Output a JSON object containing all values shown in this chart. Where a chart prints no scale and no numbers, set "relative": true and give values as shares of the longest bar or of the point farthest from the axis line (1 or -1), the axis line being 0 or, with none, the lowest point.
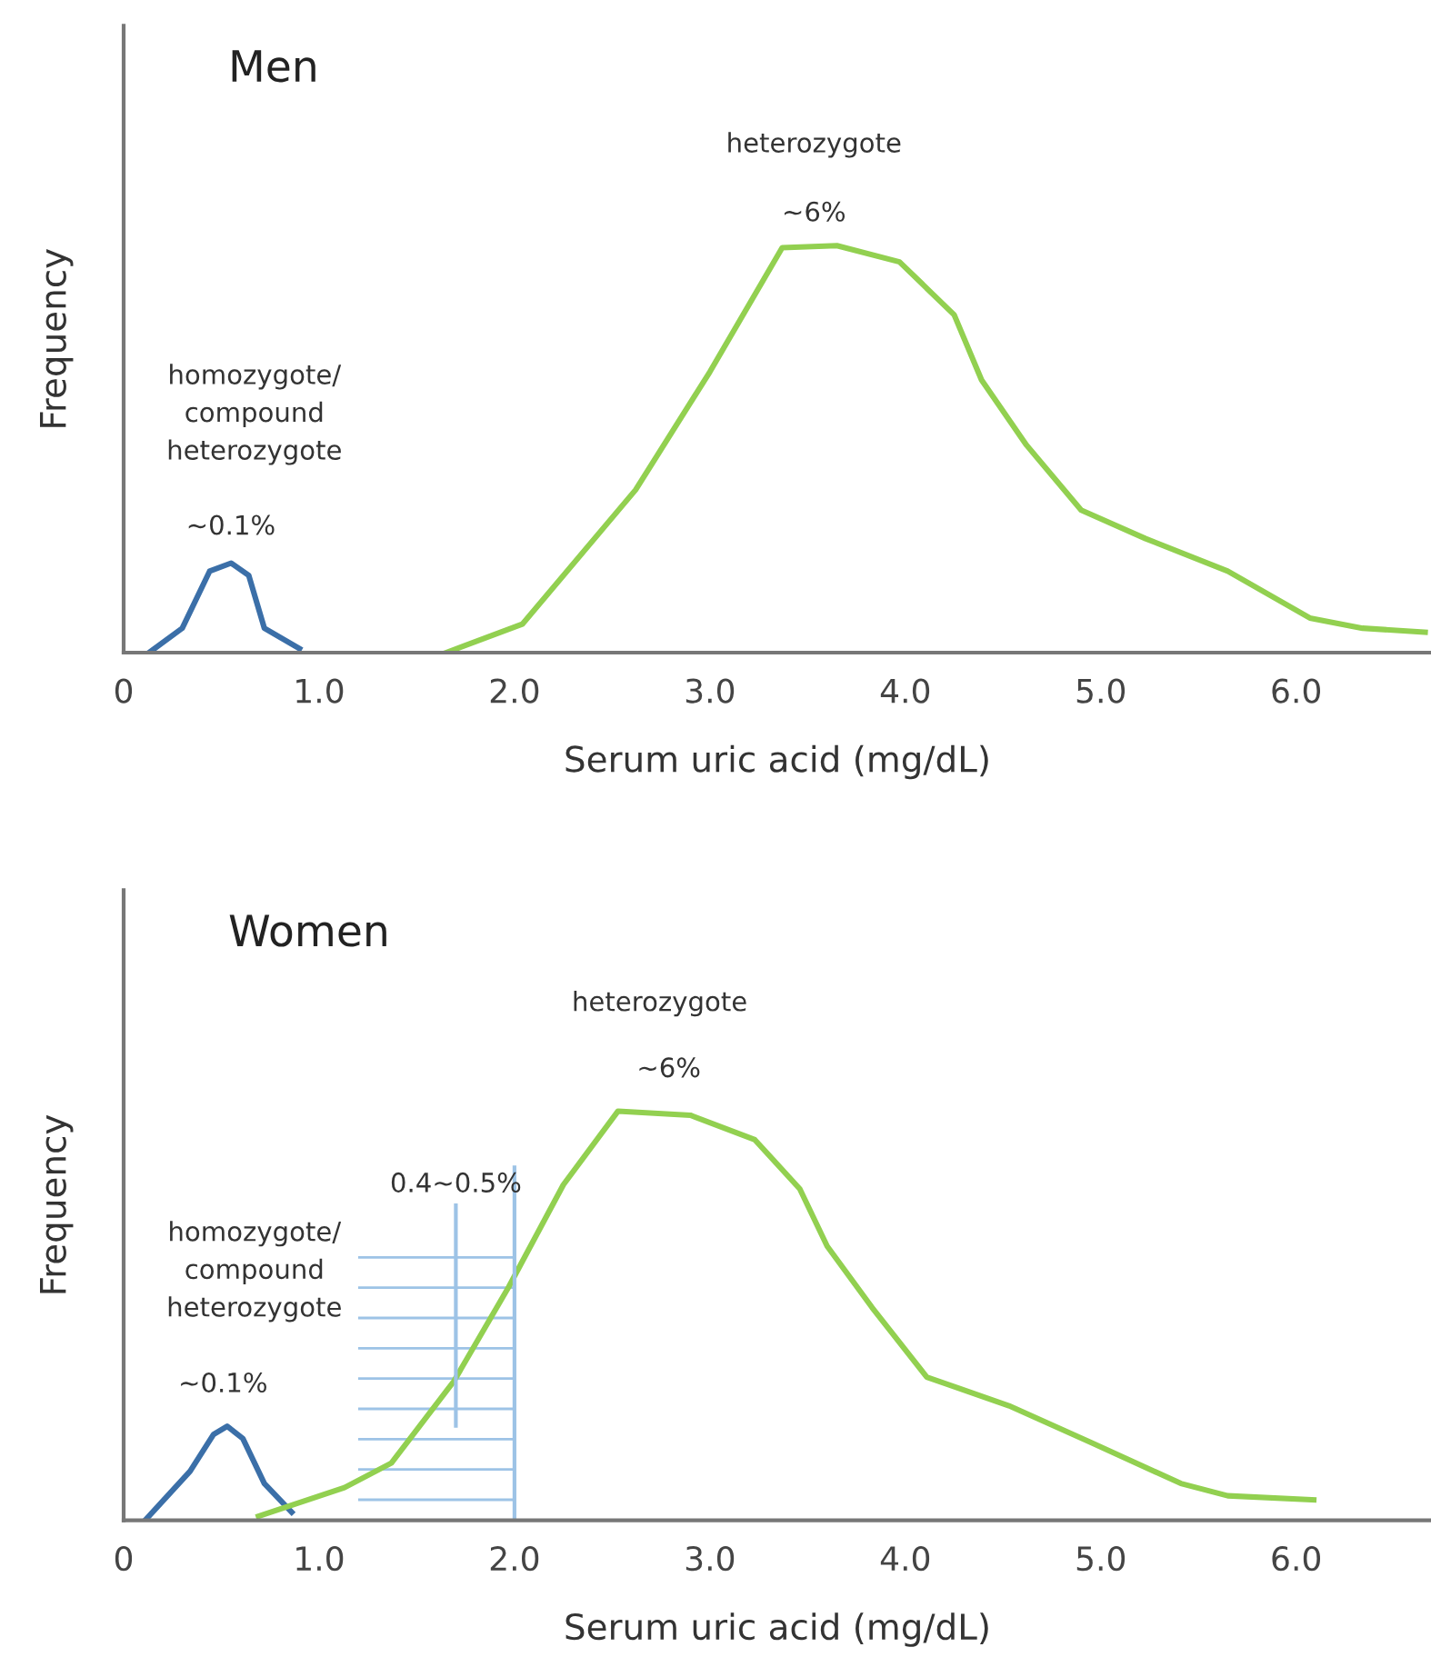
{
  "chart_data": [
    {
      "type": "line",
      "title": "Men",
      "xlabel": "Serum uric acid (mg/dL)",
      "ylabel": "Frequency",
      "relative": true,
      "xlim": [
        0,
        6.69
      ],
      "xticks": [
        0,
        {
          "value": 1,
          "label": "1.0"
        },
        {
          "value": 2,
          "label": "2.0"
        },
        {
          "value": 3,
          "label": "3.0"
        },
        {
          "value": 4,
          "label": "4.0"
        },
        {
          "value": 5,
          "label": "5.0"
        },
        {
          "value": 6,
          "label": "6.0"
        }
      ],
      "grid": false,
      "legend": false,
      "marker": "none",
      "line_style": "solid",
      "series": [
        {
          "color": "#3b6fa8",
          "x": [
            0.13,
            0.3,
            0.44,
            0.55,
            0.64,
            0.72,
            0.9
          ],
          "values": [
            0,
            0.06,
            0.2,
            0.22,
            0.19,
            0.06,
            0.01
          ]
        },
        {
          "color": "#92d050",
          "x": [
            1.65,
            2.04,
            2.62,
            3.0,
            3.37,
            3.65,
            3.97,
            4.25,
            4.39,
            4.62,
            4.9,
            5.23,
            5.65,
            6.07,
            6.34,
            6.66
          ],
          "values": [
            0,
            0.07,
            0.4,
            0.69,
            0.995,
            1.0,
            0.96,
            0.83,
            0.67,
            0.51,
            0.35,
            0.28,
            0.2,
            0.085,
            0.06,
            0.05
          ]
        }
      ],
      "annotations": [
        "heterozygote",
        "~6%",
        "homozygote/\ncompound\nheterozygote",
        "~0.1%"
      ]
    },
    {
      "type": "line",
      "title": "Women",
      "xlabel": "Serum uric acid (mg/dL)",
      "ylabel": "Frequency",
      "relative": true,
      "xlim": [
        0,
        6.69
      ],
      "xticks": [
        0,
        {
          "value": 1,
          "label": "1.0"
        },
        {
          "value": 2,
          "label": "2.0"
        },
        {
          "value": 3,
          "label": "3.0"
        },
        {
          "value": 4,
          "label": "4.0"
        },
        {
          "value": 5,
          "label": "5.0"
        },
        {
          "value": 6,
          "label": "6.0"
        }
      ],
      "grid": false,
      "legend": false,
      "marker": "none",
      "line_style": "solid",
      "series": [
        {
          "color": "#3b6fa8",
          "x": [
            0.11,
            0.34,
            0.46,
            0.53,
            0.61,
            0.72,
            0.86
          ],
          "values": [
            0,
            0.12,
            0.21,
            0.23,
            0.2,
            0.09,
            0.02
          ]
        },
        {
          "color": "#92d050",
          "x": [
            0.69,
            1.13,
            1.37,
            1.69,
            1.97,
            2.25,
            2.53,
            2.9,
            3.23,
            3.46,
            3.6,
            3.83,
            4.11,
            4.53,
            4.95,
            5.41,
            5.65,
            6.09
          ],
          "values": [
            0.01,
            0.08,
            0.14,
            0.34,
            0.57,
            0.82,
            1.0,
            0.99,
            0.93,
            0.81,
            0.67,
            0.52,
            0.35,
            0.28,
            0.19,
            0.09,
            0.06,
            0.05
          ]
        }
      ],
      "bands": [
        {
          "axis": "x",
          "from": 1.2,
          "to": 2.0,
          "label": "0.4~0.5%",
          "color": "#9dc3e6"
        }
      ],
      "annotations": [
        "heterozygote",
        "~6%",
        "homozygote/\ncompound\nheterozygote",
        "~0.1%"
      ]
    }
  ]
}
